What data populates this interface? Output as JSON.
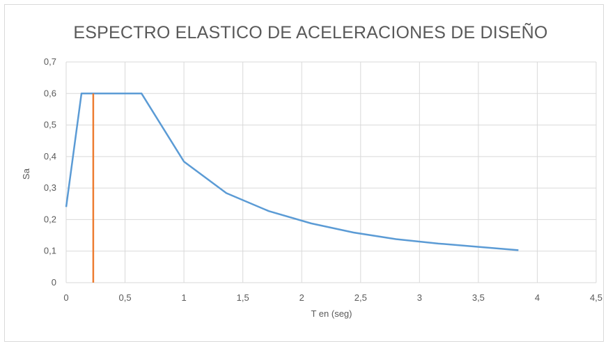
{
  "chart_data": {
    "type": "line",
    "title": "ESPECTRO ELASTICO DE ACELERACIONES DE DISEÑO",
    "xlabel": "T en (seg)",
    "ylabel": "Sa",
    "xlim": [
      0,
      4.5
    ],
    "ylim": [
      0,
      0.7
    ],
    "x_ticks": [
      {
        "value": 0,
        "label": "0"
      },
      {
        "value": 0.5,
        "label": "0,5"
      },
      {
        "value": 1,
        "label": "1"
      },
      {
        "value": 1.5,
        "label": "1,5"
      },
      {
        "value": 2,
        "label": "2"
      },
      {
        "value": 2.5,
        "label": "2,5"
      },
      {
        "value": 3,
        "label": "3"
      },
      {
        "value": 3.5,
        "label": "3,5"
      },
      {
        "value": 4,
        "label": "4"
      },
      {
        "value": 4.5,
        "label": "4,5"
      }
    ],
    "y_ticks": [
      {
        "value": 0,
        "label": "0"
      },
      {
        "value": 0.1,
        "label": "0,1"
      },
      {
        "value": 0.2,
        "label": "0,2"
      },
      {
        "value": 0.3,
        "label": "0,3"
      },
      {
        "value": 0.4,
        "label": "0,4"
      },
      {
        "value": 0.5,
        "label": "0,5"
      },
      {
        "value": 0.6,
        "label": "0,6"
      },
      {
        "value": 0.7,
        "label": "0,7"
      }
    ],
    "grid": true,
    "legend": "none",
    "series": [
      {
        "color": "#5b9bd5",
        "points": [
          [
            0,
            0.24
          ],
          [
            0.13,
            0.6
          ],
          [
            0.64,
            0.6
          ],
          [
            1.0,
            0.384
          ],
          [
            1.36,
            0.284
          ],
          [
            1.72,
            0.227
          ],
          [
            2.08,
            0.188
          ],
          [
            2.44,
            0.159
          ],
          [
            2.8,
            0.138
          ],
          [
            3.16,
            0.124
          ],
          [
            3.52,
            0.113
          ],
          [
            3.84,
            0.103
          ]
        ]
      },
      {
        "color": "#ed7d31",
        "points": [
          [
            0.23,
            0
          ],
          [
            0.23,
            0.6
          ]
        ]
      }
    ]
  }
}
